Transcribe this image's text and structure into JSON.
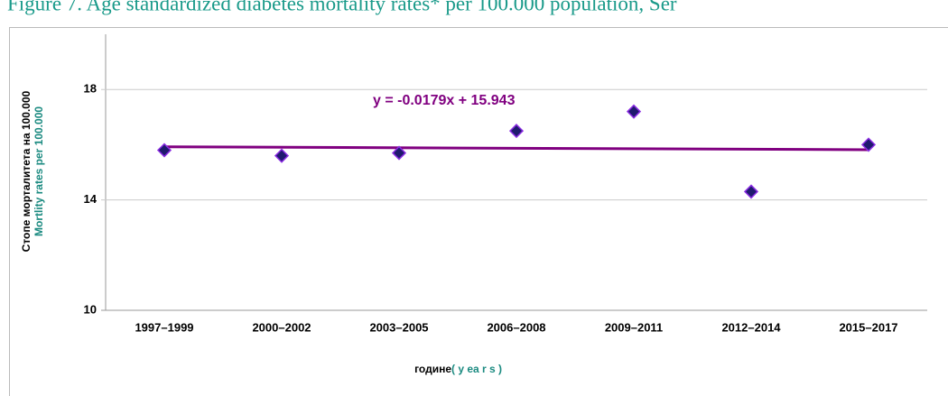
{
  "chart_data": {
    "type": "scatter",
    "title": "Figure 7. Age standardized diabetes mortality rates* per 100.000 population, Ser",
    "y_label": "Стопе морталитета  на 100.000",
    "y_label_en": "Mortlity rates per 100.000",
    "x_label": "године",
    "x_label_en": "( y ea r s )",
    "categories": [
      "1997–1999",
      "2000–2002",
      "2003–2005",
      "2006–2008",
      "2009–2011",
      "2012–2014",
      "2015–2017"
    ],
    "values": [
      15.8,
      15.6,
      15.7,
      16.5,
      17.2,
      14.3,
      16.0
    ],
    "color": "#1f1a6e",
    "ylim": [
      10,
      20
    ],
    "yticks": [
      10,
      14,
      18
    ],
    "grid": true,
    "trendline": {
      "slope": -0.0179,
      "intercept": 15.943,
      "label": "y = -0.0179x + 15.943",
      "color": "#800080"
    }
  }
}
